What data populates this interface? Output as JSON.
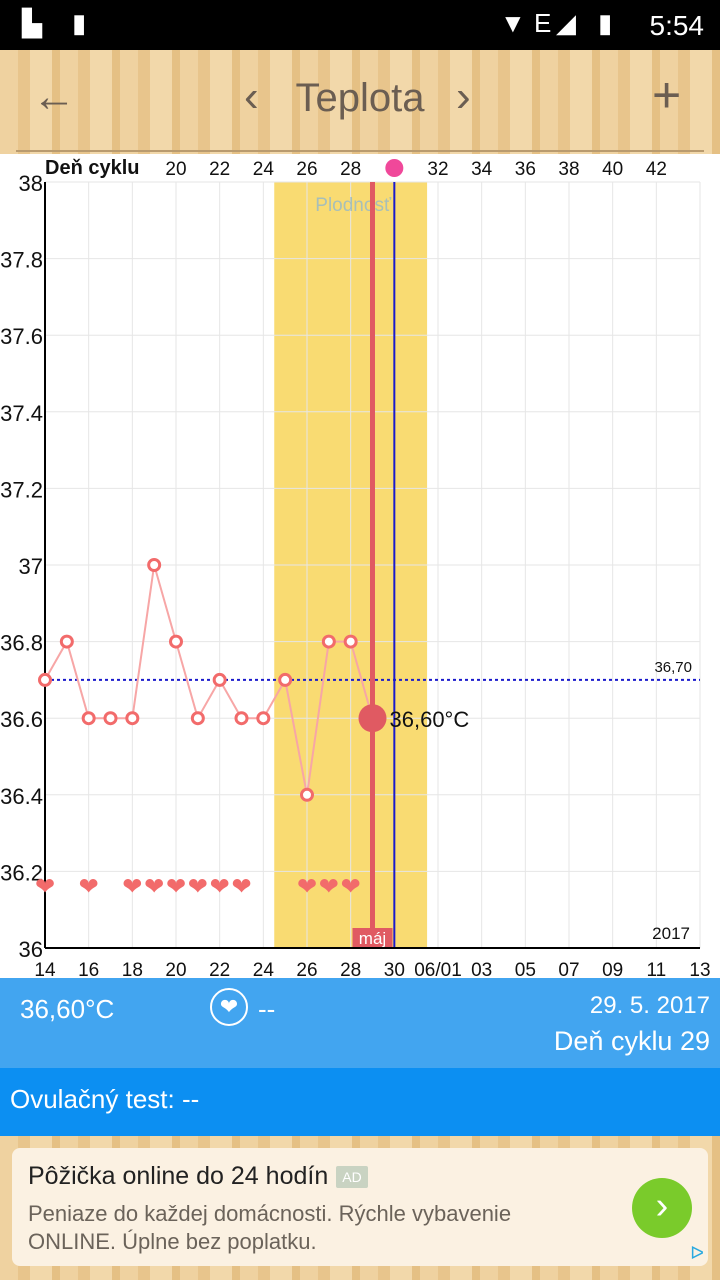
{
  "status": {
    "time": "5:54",
    "network": "E"
  },
  "appbar": {
    "title": "Teplota",
    "back_icon": "←",
    "prev_icon": "‹",
    "next_icon": "›",
    "add_icon": "+"
  },
  "chart_data": {
    "type": "line",
    "top_axis_label": "Deň cyklu",
    "cycle_day_ticks": [
      "20",
      "22",
      "24",
      "26",
      "28",
      "",
      "32",
      "34",
      "36",
      "38",
      "40",
      "42"
    ],
    "cycle_day_tick_days": [
      20,
      22,
      24,
      26,
      28,
      30,
      32,
      34,
      36,
      38,
      40,
      42
    ],
    "x_tick_labels": [
      "14",
      "16",
      "18",
      "20",
      "22",
      "24",
      "26",
      "28",
      "30",
      "06/01",
      "03",
      "05",
      "07",
      "09",
      "11",
      "13"
    ],
    "x_range_days": [
      0,
      30
    ],
    "y_ticks": [
      "38",
      "37.8",
      "37.6",
      "37.4",
      "37.2",
      "37",
      "36.8",
      "36.6",
      "36.4",
      "36.2",
      "36"
    ],
    "ylim": [
      36,
      38
    ],
    "temperatures": {
      "days": [
        0,
        1,
        2,
        3,
        4,
        5,
        6,
        7,
        8,
        9,
        10,
        11,
        12,
        13,
        14,
        15
      ],
      "values": [
        36.7,
        36.8,
        36.6,
        36.6,
        36.6,
        37.0,
        36.8,
        36.6,
        36.7,
        36.6,
        36.6,
        36.7,
        36.4,
        36.8,
        36.8,
        36.6
      ]
    },
    "selected": {
      "day": 15,
      "value": 36.6,
      "label": "36,60°C"
    },
    "intercourse_days": [
      0,
      2,
      4,
      5,
      6,
      7,
      8,
      9,
      12,
      13,
      14
    ],
    "fertile_window": {
      "start": 10.5,
      "end": 17.5,
      "label": "Plodnosť"
    },
    "ovulation_day": 16,
    "today_day": 15,
    "coverline": {
      "value": 36.7,
      "label": "36,70"
    },
    "month_label": "máj",
    "year_label": "2017",
    "colors": {
      "temp": "#f26b6b",
      "fertile": "#f9db72",
      "cover": "#1a1acc",
      "ovulation_line": "#1a1acc",
      "today_line": "#e05a62"
    }
  },
  "info": {
    "temperature": "36,60°C",
    "heart_icon": "❤",
    "heart_value": "--",
    "date": "29. 5. 2017",
    "cycle_day": "Deň cyklu 29"
  },
  "ovulation_test": "Ovulačný test: --",
  "ad": {
    "title": "Pôžička online do 24 hodín",
    "tag": "AD",
    "desc": "Peniaze do každej domácnosti. Rýchle vybavenie ONLINE. Úplne bez poplatku.",
    "go_icon": "›",
    "adchoices_icon": "ᐅ"
  }
}
